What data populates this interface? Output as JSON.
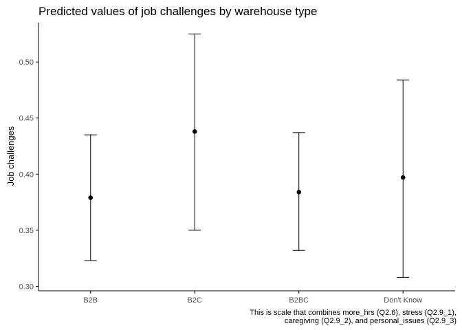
{
  "chart_data": {
    "type": "scatter",
    "title": "Predicted values of job challenges by warehouse type",
    "xlabel": "",
    "ylabel": "Job challenges",
    "categories": [
      "B2B",
      "B2C",
      "B2BC",
      "Don't Know"
    ],
    "values": [
      0.379,
      0.438,
      0.384,
      0.397
    ],
    "lower": [
      0.323,
      0.35,
      0.332,
      0.308
    ],
    "upper": [
      0.435,
      0.525,
      0.437,
      0.484
    ],
    "ylim": [
      0.296,
      0.535
    ],
    "yticks": [
      0.3,
      0.35,
      0.4,
      0.45,
      0.5
    ],
    "ytick_labels": [
      "0.30",
      "0.35",
      "0.40",
      "0.45",
      "0.50"
    ],
    "grid": false,
    "caption": [
      "This is scale that combines more_hrs (Q2.6), stress (Q2.9_1),",
      "caregiving (Q2.9_2), and personal_issues (Q2.9_3)"
    ],
    "colors": {
      "marks": "#000000",
      "axis": "#000000",
      "tick_text": "#4d4d4d"
    }
  }
}
